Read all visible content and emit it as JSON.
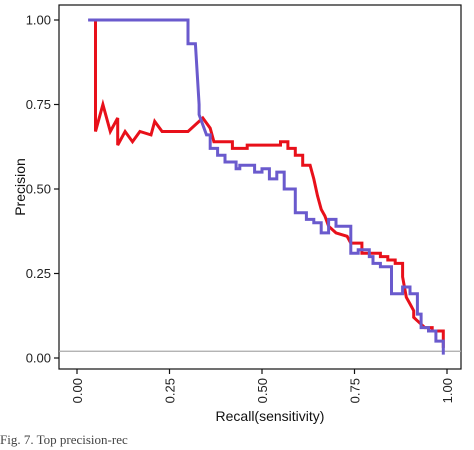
{
  "caption": "Fig. 7.   Top precision-rec",
  "chart_data": {
    "type": "line",
    "title": "",
    "xlabel": "Recall(sensitivity)",
    "ylabel": "Precision",
    "xlim": [
      0,
      1
    ],
    "ylim": [
      0,
      1.05
    ],
    "x_ticks": [
      "0.00",
      "0.25",
      "0.50",
      "0.75",
      "1.00"
    ],
    "y_ticks": [
      "0.00",
      "0.25",
      "0.50",
      "0.75",
      "1.00"
    ],
    "grid": false,
    "legend": "none",
    "reference_line": {
      "y": 0.02,
      "color": "#aaaaaa"
    },
    "series": [
      {
        "color": "#e8101a",
        "points": [
          [
            0.05,
            1.0
          ],
          [
            0.05,
            0.67
          ],
          [
            0.07,
            0.75
          ],
          [
            0.09,
            0.67
          ],
          [
            0.11,
            0.71
          ],
          [
            0.11,
            0.63
          ],
          [
            0.13,
            0.67
          ],
          [
            0.15,
            0.64
          ],
          [
            0.17,
            0.67
          ],
          [
            0.2,
            0.66
          ],
          [
            0.21,
            0.7
          ],
          [
            0.23,
            0.67
          ],
          [
            0.3,
            0.67
          ],
          [
            0.34,
            0.71
          ],
          [
            0.36,
            0.68
          ],
          [
            0.37,
            0.64
          ],
          [
            0.42,
            0.64
          ],
          [
            0.42,
            0.62
          ],
          [
            0.46,
            0.62
          ],
          [
            0.46,
            0.63
          ],
          [
            0.55,
            0.63
          ],
          [
            0.55,
            0.64
          ],
          [
            0.57,
            0.64
          ],
          [
            0.57,
            0.62
          ],
          [
            0.59,
            0.62
          ],
          [
            0.59,
            0.6
          ],
          [
            0.61,
            0.6
          ],
          [
            0.61,
            0.57
          ],
          [
            0.63,
            0.57
          ],
          [
            0.64,
            0.53
          ],
          [
            0.65,
            0.48
          ],
          [
            0.66,
            0.44
          ],
          [
            0.67,
            0.42
          ],
          [
            0.68,
            0.39
          ],
          [
            0.7,
            0.37
          ],
          [
            0.73,
            0.36
          ],
          [
            0.74,
            0.34
          ],
          [
            0.77,
            0.34
          ],
          [
            0.77,
            0.31
          ],
          [
            0.82,
            0.31
          ],
          [
            0.82,
            0.3
          ],
          [
            0.84,
            0.3
          ],
          [
            0.84,
            0.29
          ],
          [
            0.86,
            0.29
          ],
          [
            0.86,
            0.28
          ],
          [
            0.88,
            0.28
          ],
          [
            0.88,
            0.24
          ],
          [
            0.89,
            0.18
          ],
          [
            0.9,
            0.16
          ],
          [
            0.91,
            0.14
          ],
          [
            0.91,
            0.12
          ],
          [
            0.92,
            0.11
          ],
          [
            0.93,
            0.1
          ],
          [
            0.94,
            0.09
          ],
          [
            0.96,
            0.09
          ],
          [
            0.96,
            0.08
          ],
          [
            0.99,
            0.08
          ],
          [
            0.99,
            0.03
          ]
        ]
      },
      {
        "color": "#6a5acd",
        "points": [
          [
            0.03,
            1.0
          ],
          [
            0.3,
            1.0
          ],
          [
            0.3,
            0.93
          ],
          [
            0.32,
            0.93
          ],
          [
            0.33,
            0.75
          ],
          [
            0.33,
            0.72
          ],
          [
            0.35,
            0.66
          ],
          [
            0.36,
            0.66
          ],
          [
            0.36,
            0.62
          ],
          [
            0.38,
            0.62
          ],
          [
            0.38,
            0.6
          ],
          [
            0.4,
            0.6
          ],
          [
            0.4,
            0.58
          ],
          [
            0.43,
            0.58
          ],
          [
            0.43,
            0.56
          ],
          [
            0.44,
            0.56
          ],
          [
            0.44,
            0.57
          ],
          [
            0.48,
            0.57
          ],
          [
            0.48,
            0.55
          ],
          [
            0.5,
            0.55
          ],
          [
            0.5,
            0.56
          ],
          [
            0.52,
            0.56
          ],
          [
            0.52,
            0.53
          ],
          [
            0.54,
            0.53
          ],
          [
            0.54,
            0.55
          ],
          [
            0.56,
            0.55
          ],
          [
            0.56,
            0.5
          ],
          [
            0.59,
            0.5
          ],
          [
            0.59,
            0.43
          ],
          [
            0.62,
            0.43
          ],
          [
            0.62,
            0.41
          ],
          [
            0.64,
            0.41
          ],
          [
            0.64,
            0.4
          ],
          [
            0.66,
            0.4
          ],
          [
            0.66,
            0.37
          ],
          [
            0.68,
            0.37
          ],
          [
            0.68,
            0.41
          ],
          [
            0.7,
            0.41
          ],
          [
            0.7,
            0.39
          ],
          [
            0.74,
            0.39
          ],
          [
            0.74,
            0.31
          ],
          [
            0.76,
            0.31
          ],
          [
            0.76,
            0.32
          ],
          [
            0.79,
            0.32
          ],
          [
            0.79,
            0.3
          ],
          [
            0.8,
            0.3
          ],
          [
            0.8,
            0.28
          ],
          [
            0.82,
            0.28
          ],
          [
            0.82,
            0.27
          ],
          [
            0.85,
            0.27
          ],
          [
            0.85,
            0.19
          ],
          [
            0.88,
            0.19
          ],
          [
            0.88,
            0.21
          ],
          [
            0.9,
            0.21
          ],
          [
            0.9,
            0.19
          ],
          [
            0.92,
            0.19
          ],
          [
            0.92,
            0.13
          ],
          [
            0.93,
            0.13
          ],
          [
            0.93,
            0.09
          ],
          [
            0.95,
            0.09
          ],
          [
            0.95,
            0.08
          ],
          [
            0.97,
            0.08
          ],
          [
            0.97,
            0.05
          ],
          [
            0.99,
            0.05
          ],
          [
            0.99,
            0.01
          ]
        ]
      }
    ]
  }
}
